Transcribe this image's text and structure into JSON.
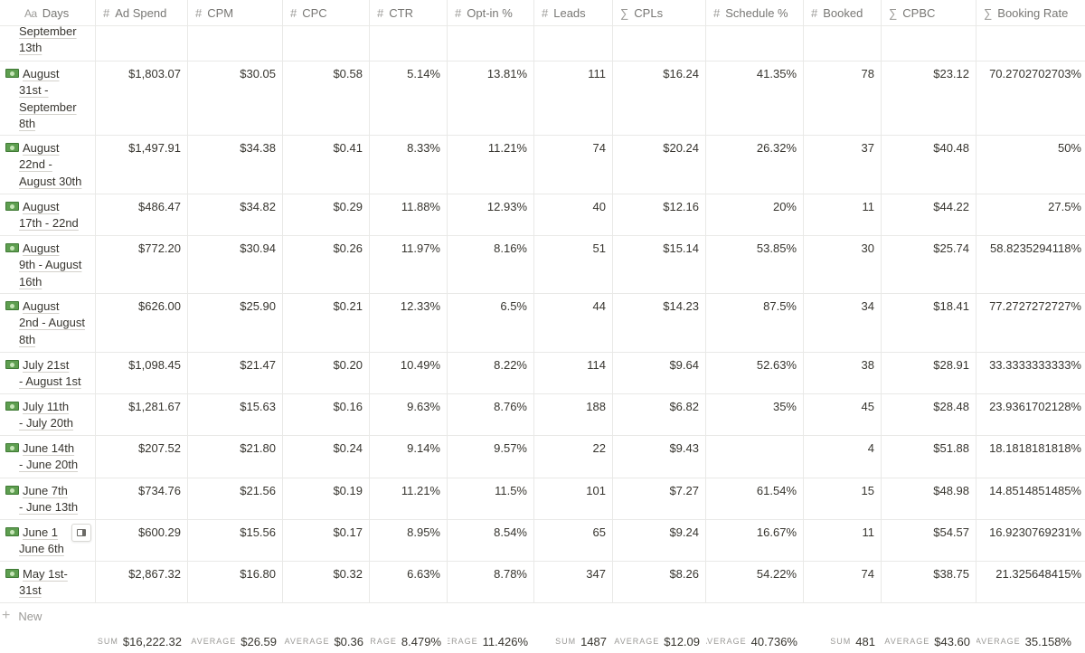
{
  "columns": [
    {
      "icon": "Aa",
      "icon_name": "text-type-icon",
      "label": "Days"
    },
    {
      "icon": "#",
      "icon_name": "number-icon",
      "label": "Ad Spend"
    },
    {
      "icon": "#",
      "icon_name": "number-icon",
      "label": "CPM"
    },
    {
      "icon": "#",
      "icon_name": "number-icon",
      "label": "CPC"
    },
    {
      "icon": "#",
      "icon_name": "number-icon",
      "label": "CTR"
    },
    {
      "icon": "#",
      "icon_name": "number-icon",
      "label": "Opt-in %"
    },
    {
      "icon": "#",
      "icon_name": "number-icon",
      "label": "Leads"
    },
    {
      "icon": "∑",
      "icon_name": "formula-icon",
      "label": "CPLs"
    },
    {
      "icon": "#",
      "icon_name": "number-icon",
      "label": "Schedule %"
    },
    {
      "icon": "#",
      "icon_name": "number-icon",
      "label": "Booked"
    },
    {
      "icon": "∑",
      "icon_name": "formula-icon",
      "label": "CPBC"
    },
    {
      "icon": "∑",
      "icon_name": "formula-icon",
      "label": "Booking Rate"
    }
  ],
  "rows": [
    {
      "days": [
        "September",
        "13th"
      ],
      "emoji": false,
      "values": [
        "",
        "",
        "",
        "",
        "",
        "",
        "",
        "",
        "",
        "",
        ""
      ]
    },
    {
      "days": [
        "August",
        "31st -",
        "September",
        "8th"
      ],
      "emoji": true,
      "values": [
        "$1,803.07",
        "$30.05",
        "$0.58",
        "5.14%",
        "13.81%",
        "111",
        "$16.24",
        "41.35%",
        "78",
        "$23.12",
        "70.2702702703%"
      ]
    },
    {
      "days": [
        "August",
        "22nd -",
        "August 30th"
      ],
      "emoji": true,
      "values": [
        "$1,497.91",
        "$34.38",
        "$0.41",
        "8.33%",
        "11.21%",
        "74",
        "$20.24",
        "26.32%",
        "37",
        "$40.48",
        "50%"
      ]
    },
    {
      "days": [
        "August",
        "17th - 22nd"
      ],
      "emoji": true,
      "values": [
        "$486.47",
        "$34.82",
        "$0.29",
        "11.88%",
        "12.93%",
        "40",
        "$12.16",
        "20%",
        "11",
        "$44.22",
        "27.5%"
      ]
    },
    {
      "days": [
        "August",
        "9th - August",
        "16th"
      ],
      "emoji": true,
      "values": [
        "$772.20",
        "$30.94",
        "$0.26",
        "11.97%",
        "8.16%",
        "51",
        "$15.14",
        "53.85%",
        "30",
        "$25.74",
        "58.8235294118%"
      ]
    },
    {
      "days": [
        "August",
        "2nd - August",
        "8th"
      ],
      "emoji": true,
      "values": [
        "$626.00",
        "$25.90",
        "$0.21",
        "12.33%",
        "6.5%",
        "44",
        "$14.23",
        "87.5%",
        "34",
        "$18.41",
        "77.2727272727%"
      ]
    },
    {
      "days": [
        "July 21st",
        "- August 1st"
      ],
      "emoji": true,
      "values": [
        "$1,098.45",
        "$21.47",
        "$0.20",
        "10.49%",
        "8.22%",
        "114",
        "$9.64",
        "52.63%",
        "38",
        "$28.91",
        "33.3333333333%"
      ]
    },
    {
      "days": [
        "July 11th",
        "- July 20th"
      ],
      "emoji": true,
      "values": [
        "$1,281.67",
        "$15.63",
        "$0.16",
        "9.63%",
        "8.76%",
        "188",
        "$6.82",
        "35%",
        "45",
        "$28.48",
        "23.9361702128%"
      ]
    },
    {
      "days": [
        "June 14th",
        "- June 20th"
      ],
      "emoji": true,
      "values": [
        "$207.52",
        "$21.80",
        "$0.24",
        "9.14%",
        "9.57%",
        "22",
        "$9.43",
        "",
        "4",
        "$51.88",
        "18.1818181818%"
      ]
    },
    {
      "days": [
        "June 7th",
        "- June 13th"
      ],
      "emoji": true,
      "values": [
        "$734.76",
        "$21.56",
        "$0.19",
        "11.21%",
        "11.5%",
        "101",
        "$7.27",
        "61.54%",
        "15",
        "$48.98",
        "14.8514851485%"
      ]
    },
    {
      "days": [
        "June 1",
        "June 6th"
      ],
      "emoji": true,
      "values": [
        "$600.29",
        "$15.56",
        "$0.17",
        "8.95%",
        "8.54%",
        "65",
        "$9.24",
        "16.67%",
        "11",
        "$54.57",
        "16.9230769231%"
      ]
    },
    {
      "days": [
        "May 1st-",
        "31st"
      ],
      "emoji": true,
      "values": [
        "$2,867.32",
        "$16.80",
        "$0.32",
        "6.63%",
        "8.78%",
        "347",
        "$8.26",
        "54.22%",
        "74",
        "$38.75",
        "21.325648415%"
      ]
    }
  ],
  "new_row": {
    "icon": "+",
    "label": "New"
  },
  "footer": [
    {
      "label": "",
      "value": ""
    },
    {
      "label": "SUM",
      "value": "$16,222.32"
    },
    {
      "label": "AVERAGE",
      "value": "$26.59"
    },
    {
      "label": "AVERAGE",
      "value": "$0.36"
    },
    {
      "label": "ERAGE",
      "value": "8.479%"
    },
    {
      "label": "ERAGE",
      "value": "11.426%"
    },
    {
      "label": "SUM",
      "value": "1487"
    },
    {
      "label": "AVERAGE",
      "value": "$12.09"
    },
    {
      "label": "AVERAGE",
      "value": "40.736%"
    },
    {
      "label": "SUM",
      "value": "481"
    },
    {
      "label": "AVERAGE",
      "value": "$43.60"
    },
    {
      "label": "AVERAGE",
      "value": "35.158%"
    }
  ],
  "colors": {
    "border": "#e9e9e7",
    "header_text": "#787774",
    "text": "#37352f",
    "muted": "#9b9a97",
    "emoji_green": "#5e9e50"
  }
}
